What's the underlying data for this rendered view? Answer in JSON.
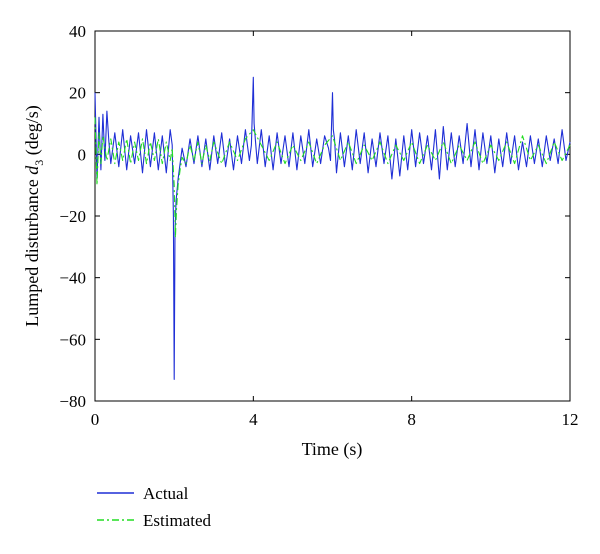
{
  "chart_data": {
    "type": "line",
    "title": "",
    "xlabel": "Time (s)",
    "ylabel_main": "Lumped disturbance ",
    "ylabel_symbol": "d",
    "ylabel_subscript": "3",
    "ylabel_unit": " (deg/s)",
    "xlim": [
      0,
      12
    ],
    "ylim": [
      -80,
      40
    ],
    "xticks": [
      0,
      4,
      8,
      12
    ],
    "yticks": [
      -80,
      -60,
      -40,
      -20,
      0,
      20,
      40
    ],
    "xtick_labels": [
      "0",
      "4",
      "8",
      "12"
    ],
    "ytick_labels": [
      "−80",
      "−60",
      "−40",
      "−20",
      "0",
      "20",
      "40"
    ],
    "grid": false,
    "legend_position": "below-left",
    "series": [
      {
        "name": "Actual",
        "color": "#1f2fd6",
        "style": "solid",
        "x": [
          0,
          0.05,
          0.1,
          0.15,
          0.2,
          0.25,
          0.3,
          0.35,
          0.4,
          0.5,
          0.6,
          0.7,
          0.8,
          0.9,
          1.0,
          1.1,
          1.2,
          1.3,
          1.4,
          1.5,
          1.6,
          1.7,
          1.8,
          1.9,
          1.95,
          1.98,
          2.0,
          2.02,
          2.05,
          2.1,
          2.15,
          2.2,
          2.3,
          2.4,
          2.5,
          2.6,
          2.7,
          2.8,
          2.9,
          3.0,
          3.1,
          3.2,
          3.3,
          3.4,
          3.5,
          3.6,
          3.7,
          3.8,
          3.9,
          3.95,
          4.0,
          4.02,
          4.05,
          4.1,
          4.2,
          4.3,
          4.4,
          4.5,
          4.6,
          4.7,
          4.8,
          4.9,
          5.0,
          5.1,
          5.2,
          5.3,
          5.4,
          5.5,
          5.6,
          5.7,
          5.8,
          5.9,
          5.95,
          6.0,
          6.02,
          6.05,
          6.1,
          6.2,
          6.3,
          6.4,
          6.5,
          6.6,
          6.7,
          6.8,
          6.9,
          7.0,
          7.1,
          7.2,
          7.3,
          7.4,
          7.5,
          7.6,
          7.7,
          7.8,
          7.9,
          8.0,
          8.1,
          8.2,
          8.3,
          8.4,
          8.5,
          8.6,
          8.7,
          8.8,
          8.9,
          9.0,
          9.1,
          9.2,
          9.3,
          9.4,
          9.5,
          9.6,
          9.7,
          9.8,
          9.9,
          10.0,
          10.1,
          10.2,
          10.3,
          10.4,
          10.5,
          10.6,
          10.7,
          10.8,
          10.9,
          11.0,
          11.1,
          11.2,
          11.3,
          11.4,
          11.5,
          11.6,
          11.7,
          11.8,
          11.9,
          12.0
        ],
        "y": [
          20,
          -8,
          12,
          -5,
          13,
          -2,
          14,
          4,
          -3,
          7,
          -4,
          8,
          -5,
          6,
          -3,
          7,
          -6,
          8,
          -4,
          7,
          -5,
          6,
          -6,
          8,
          3,
          -20,
          -73,
          -25,
          -15,
          -8,
          -3,
          2,
          -4,
          5,
          -3,
          6,
          -4,
          5,
          -5,
          6,
          -3,
          7,
          -4,
          5,
          -5,
          6,
          -3,
          8,
          -2,
          3,
          25,
          10,
          5,
          -3,
          8,
          -4,
          6,
          -5,
          7,
          -3,
          6,
          -4,
          7,
          -5,
          6,
          -3,
          8,
          -4,
          5,
          -3,
          6,
          2,
          -2,
          20,
          8,
          5,
          -6,
          7,
          -4,
          6,
          -5,
          8,
          -3,
          7,
          -6,
          5,
          -4,
          7,
          -3,
          6,
          -8,
          5,
          -7,
          6,
          -5,
          8,
          -4,
          7,
          -3,
          6,
          -5,
          8,
          -8,
          9,
          -5,
          7,
          -4,
          6,
          -3,
          10,
          -4,
          8,
          -5,
          7,
          -3,
          6,
          -6,
          5,
          -4,
          7,
          -3,
          6,
          -5,
          4,
          -4,
          6,
          -3,
          5,
          -4,
          6,
          -2,
          5,
          -3,
          8,
          -2,
          4
        ]
      },
      {
        "name": "Estimated",
        "color": "#22dd22",
        "style": "dashdot",
        "x": [
          0,
          0.05,
          0.1,
          0.15,
          0.2,
          0.3,
          0.4,
          0.5,
          0.6,
          0.7,
          0.8,
          0.9,
          1.0,
          1.1,
          1.2,
          1.3,
          1.4,
          1.5,
          1.6,
          1.7,
          1.8,
          1.9,
          1.95,
          2.0,
          2.03,
          2.06,
          2.1,
          2.15,
          2.2,
          2.3,
          2.4,
          2.5,
          2.6,
          2.7,
          2.8,
          2.9,
          3.0,
          3.2,
          3.4,
          3.6,
          3.8,
          4.0,
          4.2,
          4.4,
          4.6,
          4.8,
          5.0,
          5.2,
          5.4,
          5.6,
          5.8,
          6.0,
          6.2,
          6.4,
          6.6,
          6.8,
          7.0,
          7.2,
          7.4,
          7.6,
          7.8,
          8.0,
          8.2,
          8.4,
          8.6,
          8.8,
          9.0,
          9.2,
          9.4,
          9.6,
          9.8,
          10.0,
          10.2,
          10.4,
          10.6,
          10.8,
          11.0,
          11.2,
          11.4,
          11.6,
          11.8,
          12.0
        ],
        "y": [
          12,
          -10,
          7,
          -3,
          6,
          -2,
          5,
          -3,
          4,
          -2,
          5,
          -3,
          4,
          -2,
          5,
          -3,
          4,
          -2,
          5,
          -3,
          4,
          -2,
          2,
          -10,
          -27,
          -18,
          -10,
          -5,
          -1,
          -3,
          3,
          -2,
          4,
          -3,
          3,
          -2,
          4,
          -3,
          4,
          -2,
          5,
          8,
          3,
          -2,
          4,
          -3,
          3,
          -2,
          4,
          -3,
          3,
          6,
          -2,
          4,
          -3,
          3,
          -2,
          4,
          -3,
          3,
          -2,
          4,
          -3,
          3,
          -2,
          4,
          -3,
          3,
          -2,
          4,
          -3,
          3,
          -2,
          4,
          -3,
          6,
          -2,
          3,
          -3,
          4,
          -2,
          3
        ]
      }
    ]
  }
}
